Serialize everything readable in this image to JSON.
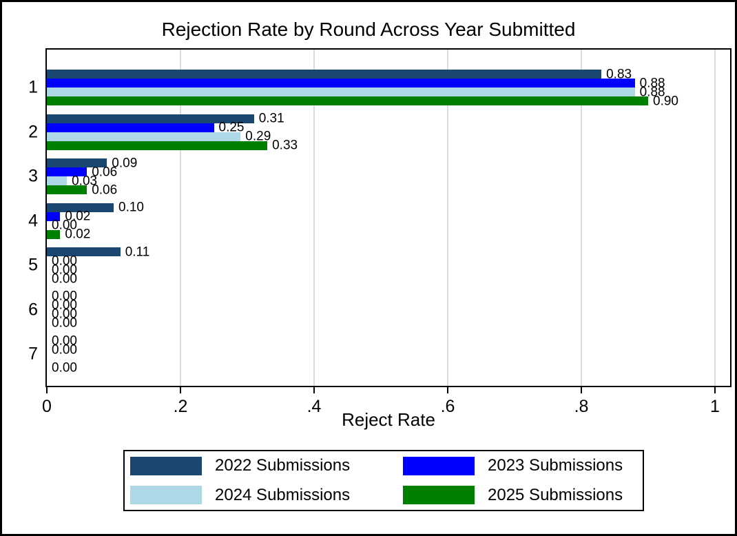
{
  "chart_data": {
    "type": "bar",
    "orientation": "horizontal",
    "title": "Rejection Rate by Round Across Year Submitted",
    "xlabel": "Reject Rate",
    "ylabel": "",
    "categories": [
      "1",
      "2",
      "3",
      "4",
      "5",
      "6",
      "7"
    ],
    "xlim": [
      0,
      1.025
    ],
    "xticks": [
      0,
      0.2,
      0.4,
      0.6,
      0.8,
      1
    ],
    "xtick_labels": [
      "0",
      ".2",
      ".4",
      ".6",
      ".8",
      "1"
    ],
    "grid": "vertical gridlines at x ticks",
    "legend_position": "bottom",
    "value_label_decimals": 2,
    "series": [
      {
        "name": "2022 Submissions",
        "color": "#1a476f",
        "values": [
          0.83,
          0.31,
          0.09,
          0.1,
          0.11,
          0.0,
          0.0
        ]
      },
      {
        "name": "2023 Submissions",
        "color": "#0000ff",
        "values": [
          0.88,
          0.25,
          0.06,
          0.02,
          0.0,
          0.0,
          0.0
        ]
      },
      {
        "name": "2024 Submissions",
        "color": "#add8e6",
        "values": [
          0.88,
          0.29,
          0.03,
          0.0,
          0.0,
          0.0,
          null
        ]
      },
      {
        "name": "2025 Submissions",
        "color": "#008000",
        "values": [
          0.9,
          0.33,
          0.06,
          0.02,
          0.0,
          0.0,
          0.0
        ]
      }
    ]
  },
  "colors": {
    "background": "#ffffff",
    "axis": "#000000",
    "gridline": "#dcdcdc",
    "text": "#000000"
  }
}
